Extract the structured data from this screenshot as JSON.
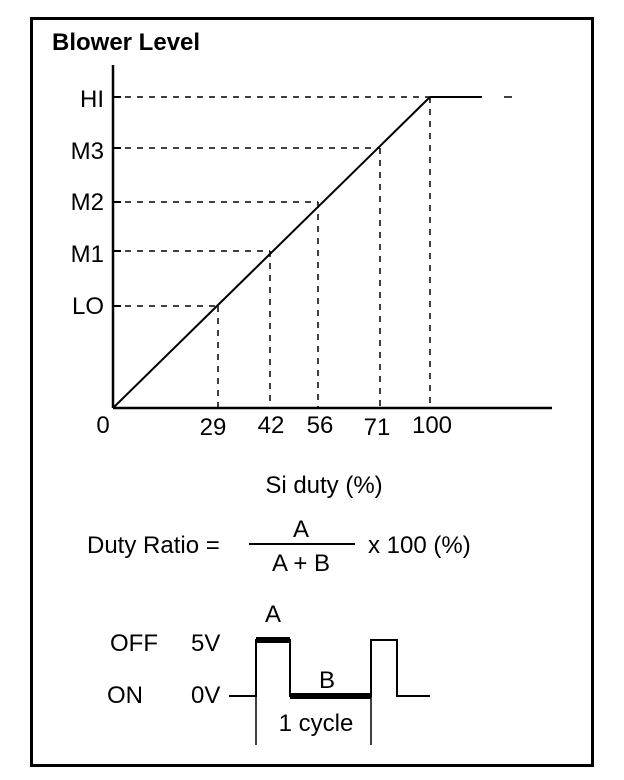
{
  "title": "Blower Level",
  "y_levels": [
    "LO",
    "M1",
    "M2",
    "M3",
    "HI"
  ],
  "x_ticks": [
    "0",
    "29",
    "42",
    "56",
    "71",
    "100"
  ],
  "x_label": "Si duty (%)",
  "formula": {
    "left": "Duty Ratio =",
    "numerator": "A",
    "denominator": "A + B",
    "right": "x 100 (%)"
  },
  "waveform": {
    "off_label": "OFF",
    "on_label": "ON",
    "high_voltage": "5V",
    "low_voltage": "0V",
    "pulse_label_a": "A",
    "pulse_label_b": "B",
    "cycle_label": "1 cycle"
  }
}
